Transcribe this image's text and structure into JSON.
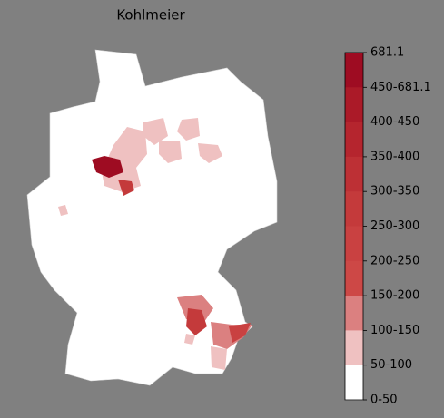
{
  "title": "Kohlmeier",
  "colorbar": {
    "labels": [
      "681.1",
      "450-681.1",
      "400-450",
      "350-400",
      "300-350",
      "250-300",
      "200-250",
      "150-200",
      "100-150",
      "50-100",
      "0-50"
    ],
    "colors": [
      "#9e0c22",
      "#ab1a28",
      "#b5252e",
      "#bd3035",
      "#c43a3b",
      "#c94141",
      "#cd4846",
      "#db8080",
      "#efc1c1",
      "#ffffff"
    ]
  }
}
